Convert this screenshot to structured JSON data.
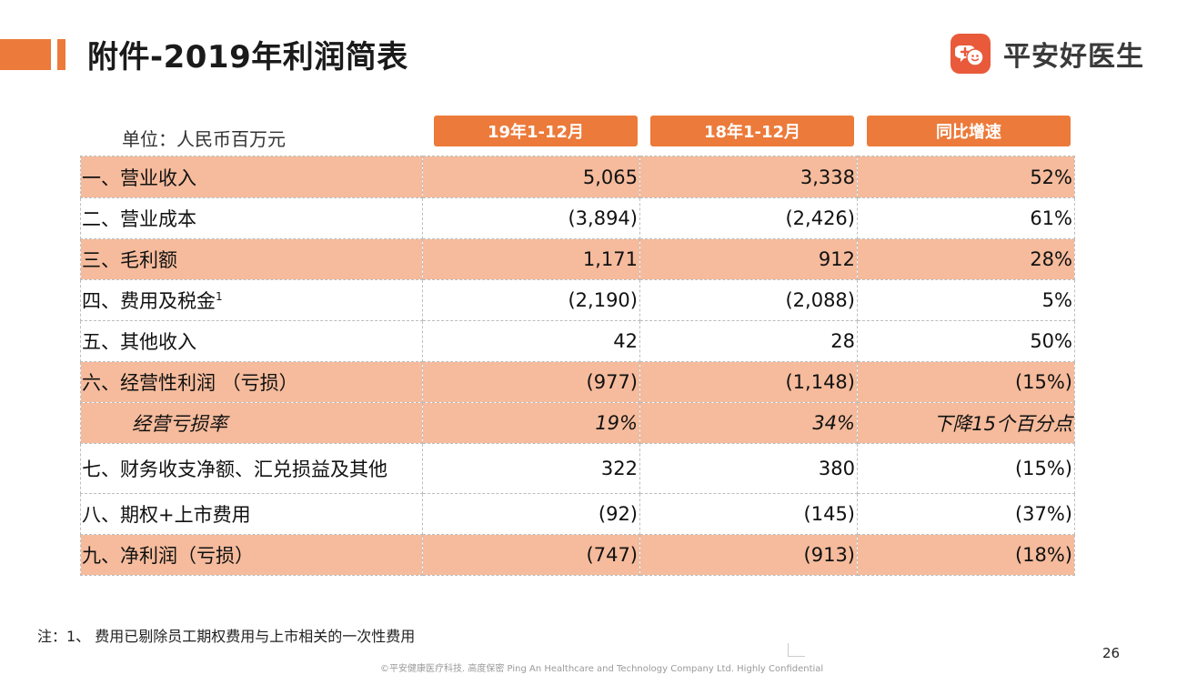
{
  "header": {
    "title": "附件-2019年利润简表",
    "brand_name": "平安好医生",
    "brand_icon": "ping-an-good-doctor-logo",
    "accent_color": "#ec7a3a"
  },
  "table": {
    "unit_label": "单位：人民币百万元",
    "columns": [
      "19年1-12月",
      "18年1-12月",
      "同比增速"
    ],
    "rows": [
      {
        "label": "一、营业收入",
        "v2019": "5,065",
        "v2018": "3,338",
        "growth": "52%"
      },
      {
        "label": "二、营业成本",
        "v2019": "(3,894)",
        "v2018": "(2,426)",
        "growth": "61%"
      },
      {
        "label": "三、毛利额",
        "v2019": "1,171",
        "v2018": "912",
        "growth": "28%"
      },
      {
        "label": "四、费用及税金",
        "sup": "1",
        "v2019": "(2,190)",
        "v2018": "(2,088)",
        "growth": "5%"
      },
      {
        "label": "五、其他收入",
        "v2019": "42",
        "v2018": "28",
        "growth": "50%"
      },
      {
        "label": "六、经营性利润 （亏损）",
        "v2019": "(977)",
        "v2018": "(1,148)",
        "growth": "(15%)"
      },
      {
        "label": "经营亏损率",
        "v2019": "19%",
        "v2018": "34%",
        "growth": "下降15个百分点"
      },
      {
        "label": "七、财务收支净额、汇兑损益及其他",
        "v2019": "322",
        "v2018": "380",
        "growth": "(15%)"
      },
      {
        "label": "八、期权+上市费用",
        "v2019": "(92)",
        "v2018": "(145)",
        "growth": "(37%)"
      },
      {
        "label": "九、净利润（亏损）",
        "v2019": "(747)",
        "v2018": "(913)",
        "growth": "(18%)"
      }
    ]
  },
  "footnote": "注：1、 费用已剔除员工期权费用与上市相关的一次性费用",
  "page_number": "26",
  "footer_text": "©平安健康医疗科技. 高度保密 Ping An Healthcare and Technology Company Ltd. Highly Confidential"
}
